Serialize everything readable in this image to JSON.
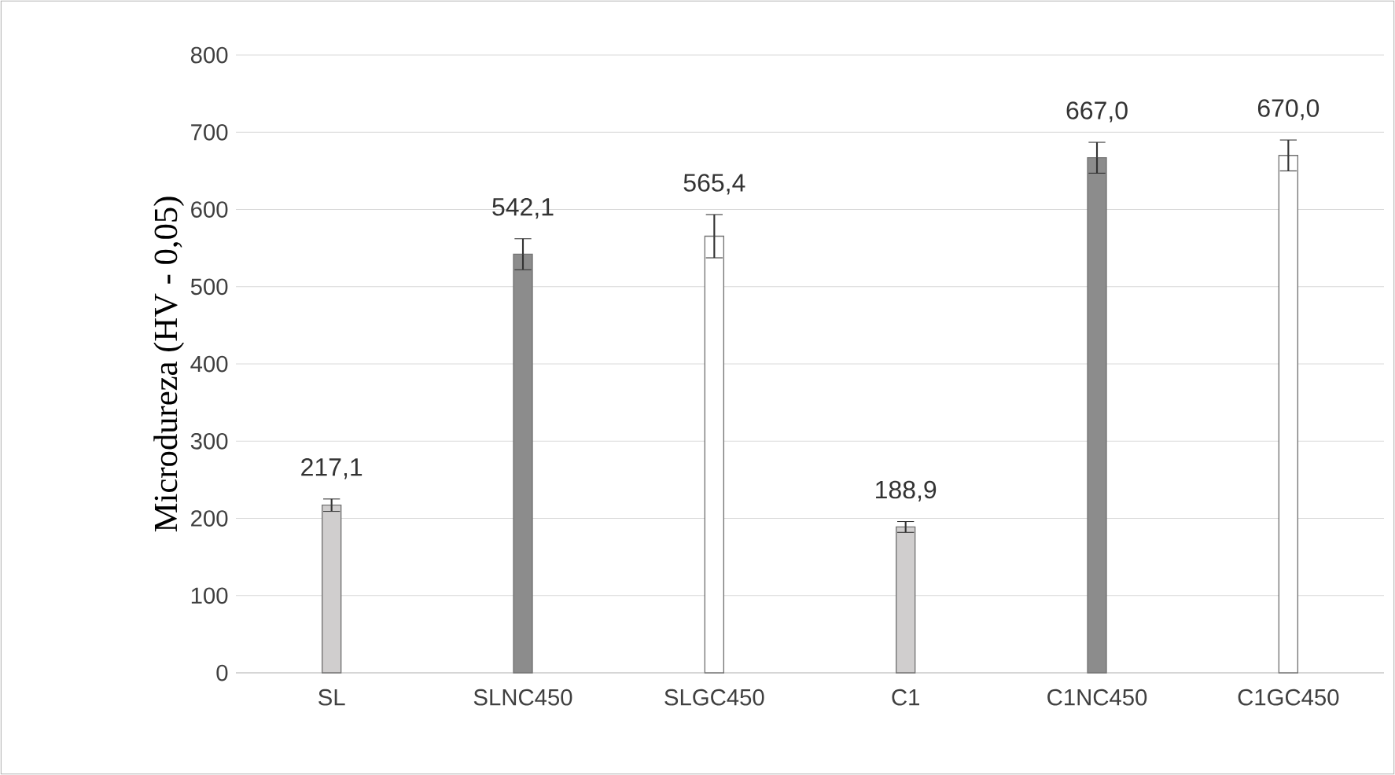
{
  "chart_data": {
    "type": "bar",
    "ylabel": "Microdureza (HV - 0,05)",
    "categories": [
      "SL",
      "SLNC450",
      "SLGC450",
      "C1",
      "C1NC450",
      "C1GC450"
    ],
    "values": [
      217.1,
      542.1,
      565.4,
      188.9,
      667.0,
      670.0
    ],
    "value_labels": [
      "217,1",
      "542,1",
      "565,4",
      "188,9",
      "667,0",
      "670,0"
    ],
    "errors": [
      8,
      20,
      28,
      7,
      20,
      20
    ],
    "colors": [
      "#d0cece",
      "#8c8c8c",
      "#ffffff",
      "#d0cece",
      "#8c8c8c",
      "#ffffff"
    ],
    "ylim": [
      0,
      800
    ],
    "yticks": [
      0,
      100,
      200,
      300,
      400,
      500,
      600,
      700,
      800
    ],
    "grid": "y"
  }
}
